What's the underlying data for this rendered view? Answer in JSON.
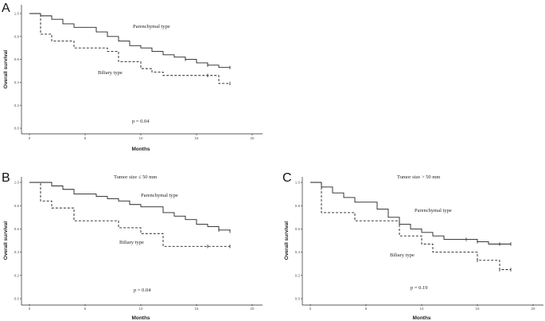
{
  "chart_data": [
    {
      "panel": "A",
      "type": "line",
      "subtitle": "",
      "xlabel": "Months",
      "ylabel": "Overall survival",
      "xlim": [
        0,
        20
      ],
      "ylim": [
        0,
        1.0
      ],
      "xticks": [
        "0",
        "5",
        "10",
        "15",
        "20"
      ],
      "yticks": [
        "0.0",
        "0.2",
        "0.4",
        "0.6",
        "0.8",
        "1.0"
      ],
      "p_value": "p = 0.04",
      "series": [
        {
          "name": "Parenchymal type",
          "style": "solid",
          "steps": [
            [
              0,
              1.0
            ],
            [
              1,
              0.98
            ],
            [
              2,
              0.95
            ],
            [
              3,
              0.91
            ],
            [
              4,
              0.88
            ],
            [
              6,
              0.84
            ],
            [
              7,
              0.8
            ],
            [
              8,
              0.76
            ],
            [
              9,
              0.72
            ],
            [
              10,
              0.7
            ],
            [
              11,
              0.67
            ],
            [
              12,
              0.64
            ],
            [
              13,
              0.62
            ],
            [
              14,
              0.6
            ],
            [
              15,
              0.57
            ],
            [
              16,
              0.55
            ],
            [
              17,
              0.53
            ],
            [
              18,
              0.53
            ]
          ],
          "censored": [
            [
              14,
              0.6
            ],
            [
              16,
              0.55
            ],
            [
              18,
              0.53
            ]
          ]
        },
        {
          "name": "Biliary type",
          "style": "dashed",
          "steps": [
            [
              0,
              1.0
            ],
            [
              1,
              0.82
            ],
            [
              2,
              0.76
            ],
            [
              4,
              0.7
            ],
            [
              7,
              0.67
            ],
            [
              8,
              0.58
            ],
            [
              10,
              0.52
            ],
            [
              11,
              0.49
            ],
            [
              12,
              0.46
            ],
            [
              17,
              0.39
            ],
            [
              18,
              0.39
            ]
          ],
          "censored": [
            [
              16,
              0.46
            ],
            [
              18,
              0.39
            ]
          ]
        }
      ]
    },
    {
      "panel": "B",
      "type": "line",
      "subtitle": "Tumor size ≤ 50 mm",
      "xlabel": "Months",
      "ylabel": "Overall survival",
      "xlim": [
        0,
        20
      ],
      "ylim": [
        0,
        1.0
      ],
      "xticks": [
        "0",
        "5",
        "10",
        "15",
        "20"
      ],
      "yticks": [
        "0.0",
        "0.2",
        "0.4",
        "0.6",
        "0.8",
        "1.0"
      ],
      "p_value": "p = 0.04",
      "series": [
        {
          "name": "Parenchymal type",
          "style": "solid",
          "steps": [
            [
              0,
              1.0
            ],
            [
              2,
              0.97
            ],
            [
              3,
              0.94
            ],
            [
              4,
              0.9
            ],
            [
              6,
              0.88
            ],
            [
              7,
              0.86
            ],
            [
              8,
              0.84
            ],
            [
              9,
              0.81
            ],
            [
              10,
              0.79
            ],
            [
              12,
              0.74
            ],
            [
              13,
              0.71
            ],
            [
              14,
              0.68
            ],
            [
              15,
              0.64
            ],
            [
              16,
              0.62
            ],
            [
              17,
              0.59
            ],
            [
              18,
              0.58
            ]
          ],
          "censored": [
            [
              17,
              0.59
            ],
            [
              18,
              0.58
            ]
          ]
        },
        {
          "name": "Biliary type",
          "style": "dashed",
          "steps": [
            [
              0,
              1.0
            ],
            [
              1,
              0.84
            ],
            [
              2,
              0.78
            ],
            [
              4,
              0.67
            ],
            [
              8,
              0.61
            ],
            [
              10,
              0.56
            ],
            [
              12,
              0.45
            ],
            [
              18,
              0.45
            ]
          ],
          "censored": [
            [
              16,
              0.45
            ],
            [
              18,
              0.45
            ]
          ]
        }
      ]
    },
    {
      "panel": "C",
      "type": "line",
      "subtitle": "Tumor size > 50 mm",
      "xlabel": "Months",
      "ylabel": "Overall survival",
      "xlim": [
        0,
        20
      ],
      "ylim": [
        0,
        1.0
      ],
      "xticks": [
        "0",
        "5",
        "10",
        "15",
        "20"
      ],
      "yticks": [
        "0.0",
        "0.2",
        "0.4",
        "0.6",
        "0.8",
        "1.0"
      ],
      "p_value": "p = 0.19",
      "series": [
        {
          "name": "Parenchymal type",
          "style": "solid",
          "steps": [
            [
              0,
              1.0
            ],
            [
              1,
              0.96
            ],
            [
              2,
              0.91
            ],
            [
              3,
              0.87
            ],
            [
              4,
              0.83
            ],
            [
              6,
              0.77
            ],
            [
              7,
              0.7
            ],
            [
              8,
              0.64
            ],
            [
              9,
              0.6
            ],
            [
              10,
              0.57
            ],
            [
              11,
              0.54
            ],
            [
              12,
              0.51
            ],
            [
              15,
              0.49
            ],
            [
              16,
              0.47
            ],
            [
              18,
              0.47
            ]
          ],
          "censored": [
            [
              14,
              0.51
            ],
            [
              15,
              0.49
            ],
            [
              17,
              0.47
            ],
            [
              18,
              0.47
            ]
          ]
        },
        {
          "name": "Biliary type",
          "style": "dashed",
          "steps": [
            [
              0,
              1.0
            ],
            [
              1,
              0.74
            ],
            [
              4,
              0.67
            ],
            [
              8,
              0.54
            ],
            [
              10,
              0.47
            ],
            [
              11,
              0.4
            ],
            [
              15,
              0.33
            ],
            [
              17,
              0.25
            ],
            [
              18,
              0.25
            ]
          ],
          "censored": [
            [
              15,
              0.33
            ],
            [
              17,
              0.25
            ],
            [
              18,
              0.25
            ]
          ]
        }
      ]
    }
  ]
}
